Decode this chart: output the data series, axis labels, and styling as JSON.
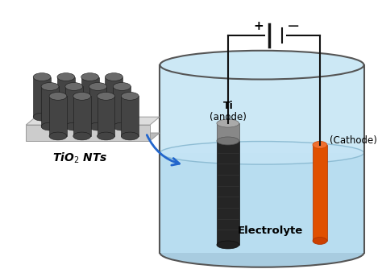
{
  "bg_color": "#ffffff",
  "beaker_fill": "#cce8f5",
  "beaker_outline": "#555555",
  "electrolyte_fill": "#b8ddf0",
  "electrolyte_surface": "#99c8e8",
  "electrolyte_text": "Electrolyte",
  "anode_body_color": "#2a2a2a",
  "anode_top_color": "#888888",
  "cathode_color": "#e05000",
  "cathode_top_color": "#f07030",
  "wire_color": "#111111",
  "arrow_color": "#2266cc",
  "tio2_body_color": "#454545",
  "tio2_top_color": "#707070",
  "tio2_base_color": "#cccccc",
  "tio2_base_top_color": "#dddddd",
  "tio2_label": "TiO$_2$ NTs",
  "ti_label": "Ti",
  "anode_label": "(anode)",
  "cathode_label": "(Cathode)",
  "plus_label": "+",
  "minus_label": "−",
  "label_fontsize": 8.5,
  "electrolyte_fontsize": 9.5
}
